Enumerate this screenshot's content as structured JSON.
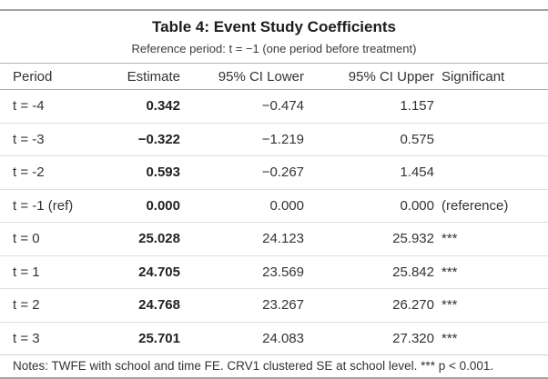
{
  "table": {
    "title": "Table 4: Event Study Coefficients",
    "subtitle": "Reference period: t = −1 (one period before treatment)",
    "columns": [
      "Period",
      "Estimate",
      "95% CI Lower",
      "95% CI Upper",
      "Significant"
    ],
    "rows": [
      {
        "period": "t = -4",
        "estimate": "0.342",
        "ci_lower": "−0.474",
        "ci_upper": "1.157",
        "significant": ""
      },
      {
        "period": "t = -3",
        "estimate": "−0.322",
        "ci_lower": "−1.219",
        "ci_upper": "0.575",
        "significant": ""
      },
      {
        "period": "t = -2",
        "estimate": "0.593",
        "ci_lower": "−0.267",
        "ci_upper": "1.454",
        "significant": ""
      },
      {
        "period": "t = -1 (ref)",
        "estimate": "0.000",
        "ci_lower": "0.000",
        "ci_upper": "0.000",
        "significant": "(reference)"
      },
      {
        "period": "t = 0",
        "estimate": "25.028",
        "ci_lower": "24.123",
        "ci_upper": "25.932",
        "significant": "***"
      },
      {
        "period": "t = 1",
        "estimate": "24.705",
        "ci_lower": "23.569",
        "ci_upper": "25.842",
        "significant": "***"
      },
      {
        "period": "t = 2",
        "estimate": "24.768",
        "ci_lower": "23.267",
        "ci_upper": "26.270",
        "significant": "***"
      },
      {
        "period": "t = 3",
        "estimate": "25.701",
        "ci_lower": "24.083",
        "ci_upper": "27.320",
        "significant": "***"
      }
    ],
    "notes": "Notes: TWFE with school and time FE. CRV1 clustered SE at school level. *** p < 0.001."
  }
}
